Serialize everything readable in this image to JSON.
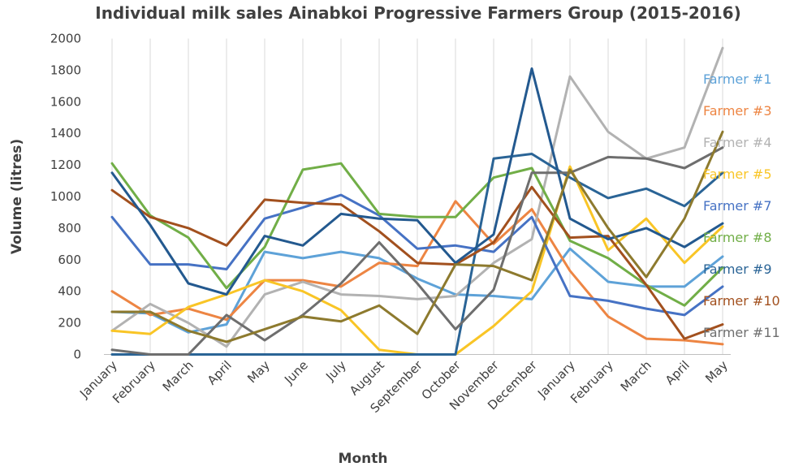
{
  "chart_data": {
    "type": "line",
    "title": "Individual milk sales Ainabkoi Progressive Farmers Group (2015-2016)",
    "xlabel": "Month",
    "ylabel": "Volume (litres)",
    "ylim": [
      0,
      2000
    ],
    "yticks": [
      0,
      200,
      400,
      600,
      800,
      1000,
      1200,
      1400,
      1600,
      1800,
      2000
    ],
    "grid": "vertical",
    "legend": "right",
    "categories": [
      "January",
      "February",
      "March",
      "April",
      "May",
      "June",
      "July",
      "August",
      "September",
      "October",
      "November",
      "December",
      "January",
      "February",
      "March",
      "April",
      "May"
    ],
    "series": [
      {
        "name": "Farmer #1",
        "color": "#5ea2d8",
        "values": [
          270,
          260,
          140,
          190,
          650,
          610,
          650,
          610,
          480,
          380,
          370,
          350,
          670,
          460,
          430,
          430,
          620
        ]
      },
      {
        "name": "Farmer #3",
        "color": "#ed8543",
        "values": [
          400,
          250,
          290,
          220,
          470,
          470,
          430,
          580,
          560,
          970,
          700,
          920,
          530,
          240,
          100,
          90,
          65
        ]
      },
      {
        "name": "Farmer #4",
        "color": "#b2b2b2",
        "values": [
          150,
          320,
          200,
          50,
          380,
          460,
          380,
          370,
          350,
          370,
          580,
          730,
          1760,
          1410,
          1240,
          1310,
          1940
        ]
      },
      {
        "name": "Farmer #5",
        "color": "#f9c526",
        "values": [
          150,
          130,
          300,
          380,
          470,
          400,
          280,
          30,
          0,
          0,
          180,
          400,
          1190,
          660,
          860,
          580,
          810
        ]
      },
      {
        "name": "Farmer #7",
        "color": "#4672c4",
        "values": [
          870,
          570,
          570,
          540,
          860,
          930,
          1010,
          880,
          670,
          690,
          650,
          870,
          370,
          340,
          290,
          250,
          430
        ]
      },
      {
        "name": "Farmer #8",
        "color": "#71ae47",
        "values": [
          1210,
          880,
          740,
          420,
          680,
          1170,
          1210,
          890,
          870,
          870,
          1120,
          1180,
          720,
          610,
          440,
          310,
          550
        ]
      },
      {
        "name": "Farmer #9",
        "color": "#2a6496",
        "values": [
          0,
          0,
          0,
          0,
          0,
          0,
          0,
          0,
          0,
          0,
          1240,
          1270,
          1120,
          990,
          1050,
          940,
          1150
        ]
      },
      {
        "name": "Farmer #10",
        "color": "#a2501e",
        "values": [
          1040,
          870,
          800,
          690,
          980,
          960,
          950,
          780,
          580,
          570,
          710,
          1060,
          740,
          750,
          440,
          100,
          190
        ]
      },
      {
        "name": "Farmer #11",
        "color": "#6e6e6e",
        "values": [
          30,
          0,
          0,
          250,
          90,
          250,
          450,
          710,
          450,
          160,
          410,
          1150,
          1150,
          1250,
          1240,
          1180,
          1310
        ]
      },
      {
        "name": "",
        "color": "#23598f",
        "values": [
          1150,
          820,
          450,
          380,
          750,
          690,
          890,
          860,
          850,
          580,
          760,
          1810,
          860,
          730,
          800,
          680,
          830
        ]
      },
      {
        "name": "",
        "color": "#8d7a2e",
        "values": [
          270,
          270,
          150,
          80,
          160,
          240,
          210,
          310,
          130,
          570,
          560,
          470,
          1170,
          800,
          490,
          860,
          1410
        ]
      }
    ]
  }
}
